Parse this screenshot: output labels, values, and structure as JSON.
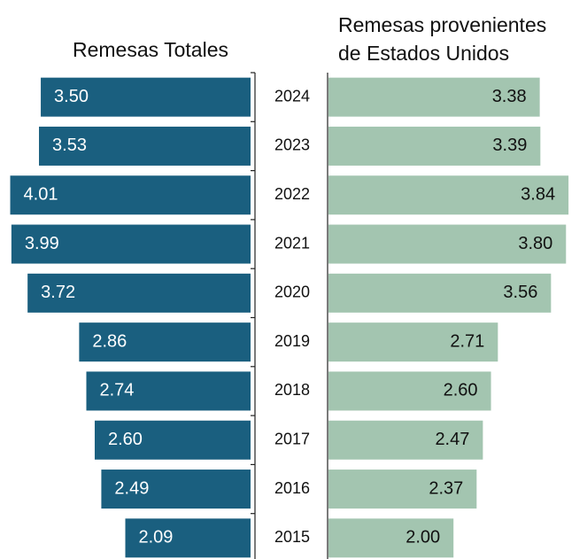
{
  "chart_data": {
    "type": "butterfly-bar",
    "categories": [
      "2024",
      "2023",
      "2022",
      "2021",
      "2020",
      "2019",
      "2018",
      "2017",
      "2016",
      "2015"
    ],
    "series": [
      {
        "name": "Remesas Totales",
        "color": "#1a5f7f",
        "values": [
          3.5,
          3.53,
          4.01,
          3.99,
          3.72,
          2.86,
          2.74,
          2.6,
          2.49,
          2.09
        ],
        "value_labels": [
          "3.50",
          "3.53",
          "4.01",
          "3.99",
          "3.72",
          "2.86",
          "2.74",
          "2.60",
          "2.49",
          "2.09"
        ]
      },
      {
        "name": "Remesas provenientes de Estados Unidos",
        "color": "#a3c5b0",
        "values": [
          3.38,
          3.39,
          3.84,
          3.8,
          3.56,
          2.71,
          2.6,
          2.47,
          2.37,
          2.0
        ],
        "value_labels": [
          "3.38",
          "3.39",
          "3.84",
          "3.80",
          "3.56",
          "2.71",
          "2.60",
          "2.47",
          "2.37",
          "2.00"
        ]
      }
    ]
  }
}
